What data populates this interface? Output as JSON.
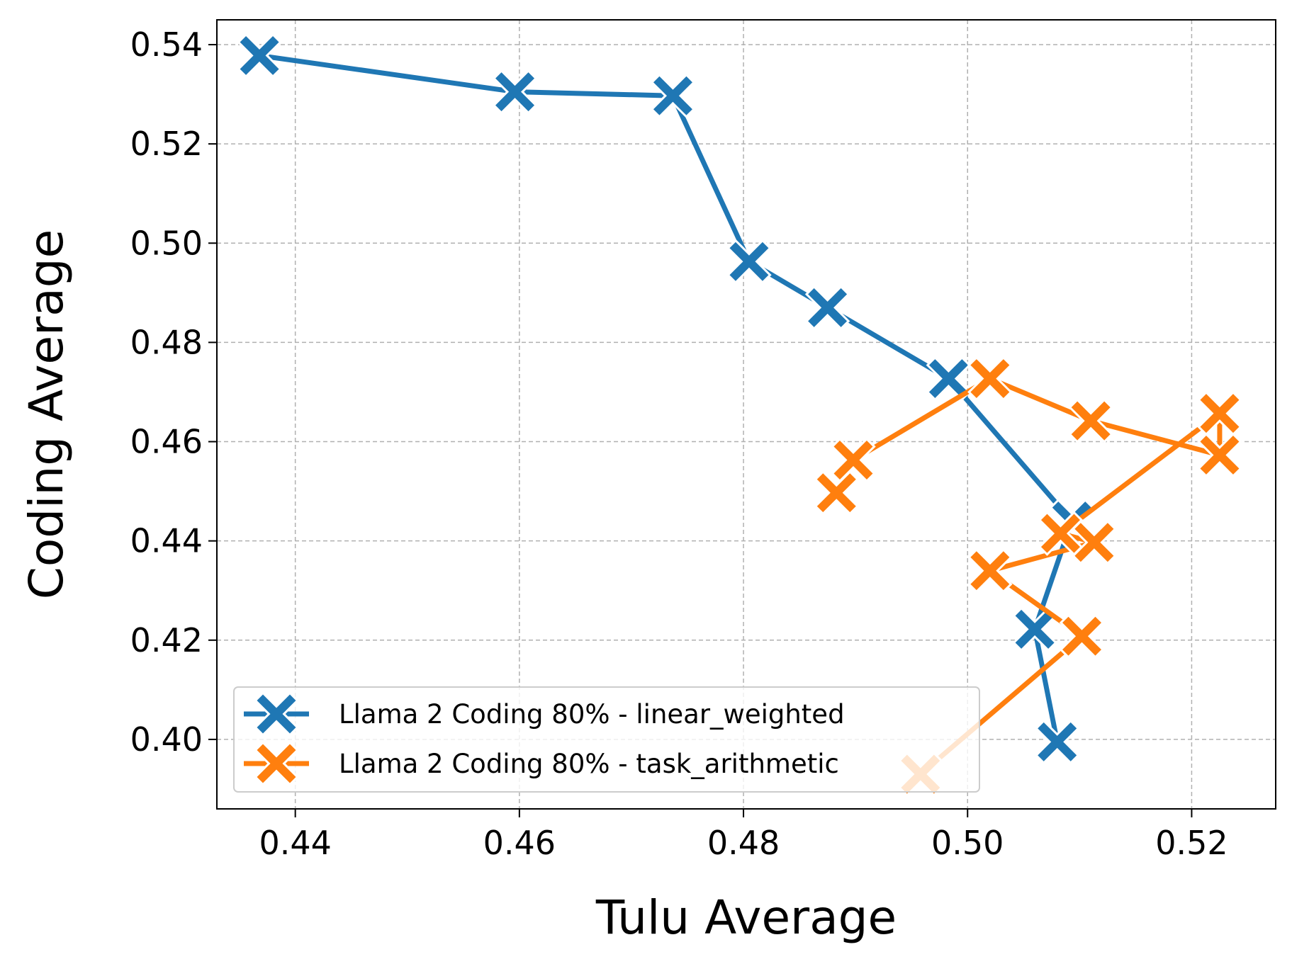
{
  "chart_data": {
    "type": "line",
    "title": "",
    "xlabel": "Tulu Average",
    "ylabel": "Coding Average",
    "xlim": [
      0.433,
      0.5275
    ],
    "ylim": [
      0.386,
      0.545
    ],
    "xticks": [
      0.44,
      0.46,
      0.48,
      0.5,
      0.52
    ],
    "xtick_labels": [
      "0.44",
      "0.46",
      "0.48",
      "0.50",
      "0.52"
    ],
    "yticks": [
      0.4,
      0.42,
      0.44,
      0.46,
      0.48,
      0.5,
      0.52,
      0.54
    ],
    "ytick_labels": [
      "0.40",
      "0.42",
      "0.44",
      "0.46",
      "0.48",
      "0.50",
      "0.52",
      "0.54"
    ],
    "grid": true,
    "legend_position": "lower-left",
    "series": [
      {
        "name": "Llama 2 Coding 80% - linear_weighted",
        "color": "#1f77b4",
        "marker": "x",
        "x": [
          0.4368,
          0.4596,
          0.4737,
          0.4805,
          0.4875,
          0.4983,
          0.5093,
          0.506,
          0.508
        ],
        "y": [
          0.5378,
          0.5305,
          0.5297,
          0.4963,
          0.487,
          0.4727,
          0.444,
          0.4222,
          0.3995
        ]
      },
      {
        "name": "Llama 2 Coding 80% - task_arithmetic",
        "color": "#ff7f0e",
        "marker": "x",
        "x": [
          0.4883,
          0.4898,
          0.502,
          0.511,
          0.5225,
          0.5225,
          0.5083,
          0.5113,
          0.502,
          0.5102,
          0.4958
        ],
        "y": [
          0.4497,
          0.4563,
          0.4727,
          0.4642,
          0.4573,
          0.4657,
          0.4415,
          0.4397,
          0.434,
          0.4208,
          0.393
        ]
      }
    ]
  }
}
